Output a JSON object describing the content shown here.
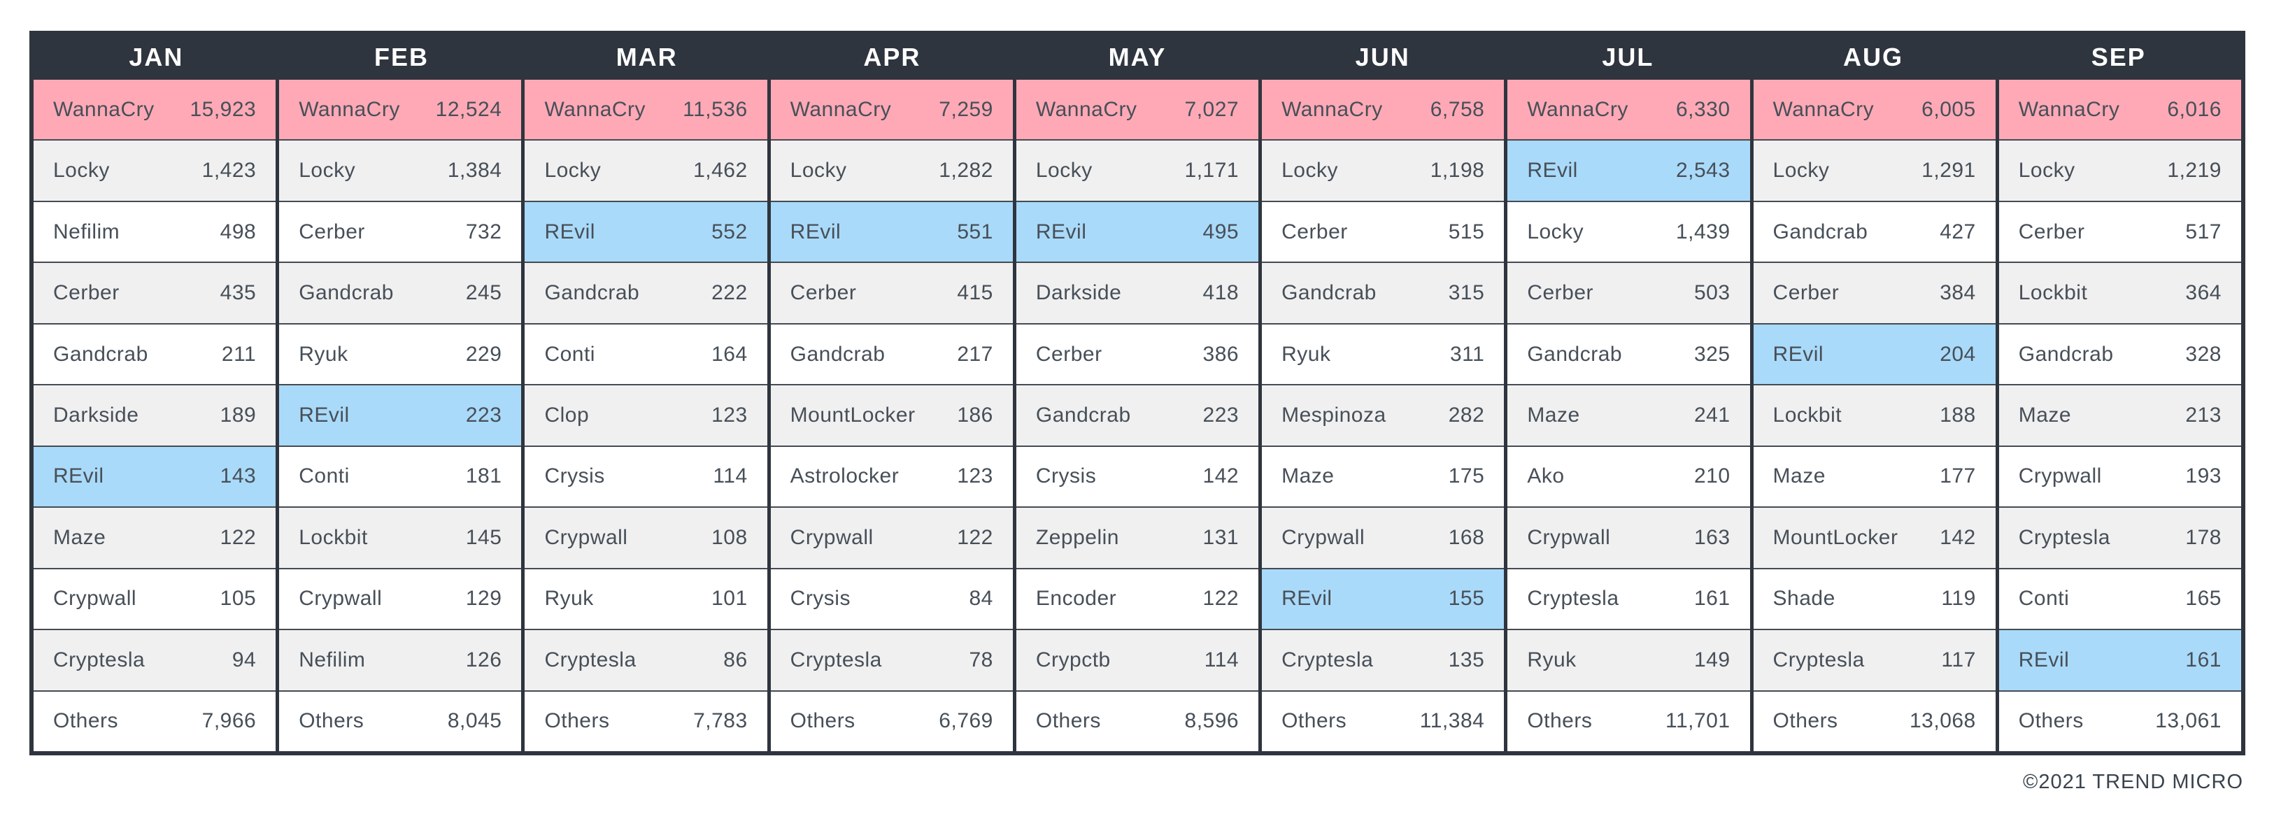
{
  "colors": {
    "header_bg": "#2F353E",
    "border_dark": "#2F353E",
    "row_divider": "#454B52",
    "row_gray": "#F0F0F0",
    "row_white": "#FFFFFF",
    "text_dark": "#474F58",
    "header_text": "#FFFFFF",
    "highlight_pink": "#FFA9B6",
    "highlight_blue": "#AADAF9"
  },
  "footer": {
    "copyright": "©2021 TREND MICRO"
  },
  "chart_data": {
    "type": "table",
    "description": "Top ransomware family detection counts per month, JAN-SEP, with WannaCry rows highlighted pink and REvil rows highlighted blue",
    "highlight_rules": [
      {
        "family": "WannaCry",
        "color_key": "highlight_pink"
      },
      {
        "family": "REvil",
        "color_key": "highlight_blue"
      }
    ],
    "months": [
      {
        "label": "JAN",
        "entries": [
          {
            "family": "WannaCry",
            "count": "15,923"
          },
          {
            "family": "Locky",
            "count": "1,423"
          },
          {
            "family": "Nefilim",
            "count": "498"
          },
          {
            "family": "Cerber",
            "count": "435"
          },
          {
            "family": "Gandcrab",
            "count": "211"
          },
          {
            "family": "Darkside",
            "count": "189"
          },
          {
            "family": "REvil",
            "count": "143"
          },
          {
            "family": "Maze",
            "count": "122"
          },
          {
            "family": "Crypwall",
            "count": "105"
          },
          {
            "family": "Cryptesla",
            "count": "94"
          },
          {
            "family": "Others",
            "count": "7,966"
          }
        ]
      },
      {
        "label": "FEB",
        "entries": [
          {
            "family": "WannaCry",
            "count": "12,524"
          },
          {
            "family": "Locky",
            "count": "1,384"
          },
          {
            "family": "Cerber",
            "count": "732"
          },
          {
            "family": "Gandcrab",
            "count": "245"
          },
          {
            "family": "Ryuk",
            "count": "229"
          },
          {
            "family": "REvil",
            "count": "223"
          },
          {
            "family": "Conti",
            "count": "181"
          },
          {
            "family": "Lockbit",
            "count": "145"
          },
          {
            "family": "Crypwall",
            "count": "129"
          },
          {
            "family": "Nefilim",
            "count": "126"
          },
          {
            "family": "Others",
            "count": "8,045"
          }
        ]
      },
      {
        "label": "MAR",
        "entries": [
          {
            "family": "WannaCry",
            "count": "11,536"
          },
          {
            "family": "Locky",
            "count": "1,462"
          },
          {
            "family": "REvil",
            "count": "552"
          },
          {
            "family": "Gandcrab",
            "count": "222"
          },
          {
            "family": "Conti",
            "count": "164"
          },
          {
            "family": "Clop",
            "count": "123"
          },
          {
            "family": "Crysis",
            "count": "114"
          },
          {
            "family": "Crypwall",
            "count": "108"
          },
          {
            "family": "Ryuk",
            "count": "101"
          },
          {
            "family": "Cryptesla",
            "count": "86"
          },
          {
            "family": "Others",
            "count": "7,783"
          }
        ]
      },
      {
        "label": "APR",
        "entries": [
          {
            "family": "WannaCry",
            "count": "7,259"
          },
          {
            "family": "Locky",
            "count": "1,282"
          },
          {
            "family": "REvil",
            "count": "551"
          },
          {
            "family": "Cerber",
            "count": "415"
          },
          {
            "family": "Gandcrab",
            "count": "217"
          },
          {
            "family": "MountLocker",
            "count": "186"
          },
          {
            "family": "Astrolocker",
            "count": "123"
          },
          {
            "family": "Crypwall",
            "count": "122"
          },
          {
            "family": "Crysis",
            "count": "84"
          },
          {
            "family": "Cryptesla",
            "count": "78"
          },
          {
            "family": "Others",
            "count": "6,769"
          }
        ]
      },
      {
        "label": "MAY",
        "entries": [
          {
            "family": "WannaCry",
            "count": "7,027"
          },
          {
            "family": "Locky",
            "count": "1,171"
          },
          {
            "family": "REvil",
            "count": "495"
          },
          {
            "family": "Darkside",
            "count": "418"
          },
          {
            "family": "Cerber",
            "count": "386"
          },
          {
            "family": "Gandcrab",
            "count": "223"
          },
          {
            "family": "Crysis",
            "count": "142"
          },
          {
            "family": "Zeppelin",
            "count": "131"
          },
          {
            "family": "Encoder",
            "count": "122"
          },
          {
            "family": "Crypctb",
            "count": "114"
          },
          {
            "family": "Others",
            "count": "8,596"
          }
        ]
      },
      {
        "label": "JUN",
        "entries": [
          {
            "family": "WannaCry",
            "count": "6,758"
          },
          {
            "family": "Locky",
            "count": "1,198"
          },
          {
            "family": "Cerber",
            "count": "515"
          },
          {
            "family": "Gandcrab",
            "count": "315"
          },
          {
            "family": "Ryuk",
            "count": "311"
          },
          {
            "family": "Mespinoza",
            "count": "282"
          },
          {
            "family": "Maze",
            "count": "175"
          },
          {
            "family": "Crypwall",
            "count": "168"
          },
          {
            "family": "REvil",
            "count": "155"
          },
          {
            "family": "Cryptesla",
            "count": "135"
          },
          {
            "family": "Others",
            "count": "11,384"
          }
        ]
      },
      {
        "label": "JUL",
        "entries": [
          {
            "family": "WannaCry",
            "count": "6,330"
          },
          {
            "family": "REvil",
            "count": "2,543"
          },
          {
            "family": "Locky",
            "count": "1,439"
          },
          {
            "family": "Cerber",
            "count": "503"
          },
          {
            "family": "Gandcrab",
            "count": "325"
          },
          {
            "family": "Maze",
            "count": "241"
          },
          {
            "family": "Ako",
            "count": "210"
          },
          {
            "family": "Crypwall",
            "count": "163"
          },
          {
            "family": "Cryptesla",
            "count": "161"
          },
          {
            "family": "Ryuk",
            "count": "149"
          },
          {
            "family": "Others",
            "count": "11,701"
          }
        ]
      },
      {
        "label": "AUG",
        "entries": [
          {
            "family": "WannaCry",
            "count": "6,005"
          },
          {
            "family": "Locky",
            "count": "1,291"
          },
          {
            "family": "Gandcrab",
            "count": "427"
          },
          {
            "family": "Cerber",
            "count": "384"
          },
          {
            "family": "REvil",
            "count": "204"
          },
          {
            "family": "Lockbit",
            "count": "188"
          },
          {
            "family": "Maze",
            "count": "177"
          },
          {
            "family": "MountLocker",
            "count": "142"
          },
          {
            "family": "Shade",
            "count": "119"
          },
          {
            "family": "Cryptesla",
            "count": "117"
          },
          {
            "family": "Others",
            "count": "13,068"
          }
        ]
      },
      {
        "label": "SEP",
        "entries": [
          {
            "family": "WannaCry",
            "count": "6,016"
          },
          {
            "family": "Locky",
            "count": "1,219"
          },
          {
            "family": "Cerber",
            "count": "517"
          },
          {
            "family": "Lockbit",
            "count": "364"
          },
          {
            "family": "Gandcrab",
            "count": "328"
          },
          {
            "family": "Maze",
            "count": "213"
          },
          {
            "family": "Crypwall",
            "count": "193"
          },
          {
            "family": "Cryptesla",
            "count": "178"
          },
          {
            "family": "Conti",
            "count": "165"
          },
          {
            "family": "REvil",
            "count": "161"
          },
          {
            "family": "Others",
            "count": "13,061"
          }
        ]
      }
    ]
  }
}
